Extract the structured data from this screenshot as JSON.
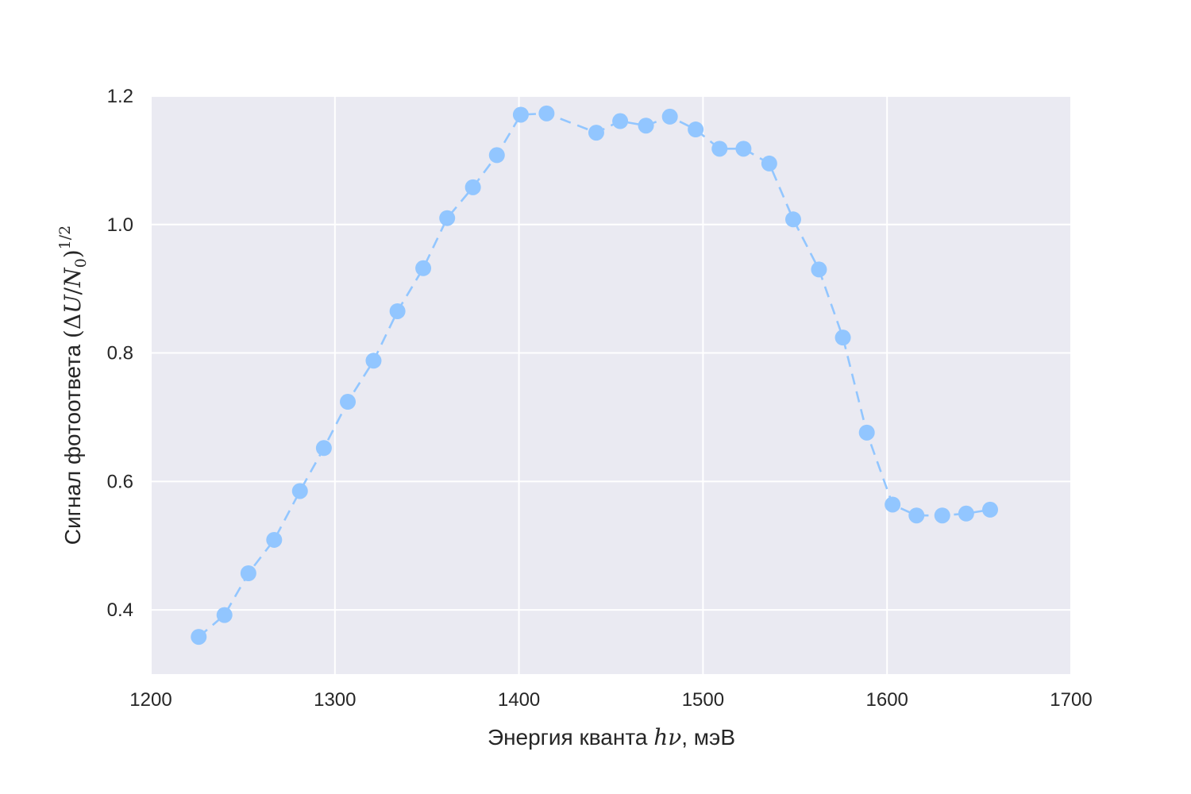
{
  "chart_data": {
    "type": "line",
    "title": "",
    "xlabel": "Энергия кванта hν, мэВ",
    "ylabel": "Сигнал фотоответа (ΔU/N₀)^(1/2)",
    "xlim": [
      1200,
      1700
    ],
    "ylim": [
      0.3,
      1.2
    ],
    "xticks": [
      1200,
      1300,
      1400,
      1500,
      1600,
      1700
    ],
    "yticks": [
      0.4,
      0.6,
      0.8,
      1.0,
      1.2
    ],
    "xtick_labels": [
      "1200",
      "1300",
      "1400",
      "1500",
      "1600",
      "1700"
    ],
    "ytick_labels": [
      "0.4",
      "0.6",
      "0.8",
      "1.0",
      "1.2"
    ],
    "grid": true,
    "line_style": "dashed",
    "marker": "circle",
    "series_color": "#92c6ff",
    "background_color": "#eaeaf2",
    "grid_color": "#ffffff",
    "series": [
      {
        "x": [
          1226,
          1240,
          1253,
          1267,
          1281,
          1294,
          1307,
          1321,
          1334,
          1348,
          1361,
          1375,
          1388,
          1401,
          1415,
          1442,
          1455,
          1469,
          1482,
          1496,
          1509,
          1522,
          1536,
          1549,
          1563,
          1576,
          1589,
          1603,
          1616,
          1630,
          1643,
          1656
        ],
        "y": [
          0.358,
          0.392,
          0.457,
          0.509,
          0.585,
          0.652,
          0.724,
          0.788,
          0.865,
          0.932,
          1.01,
          1.058,
          1.108,
          1.171,
          1.173,
          1.143,
          1.161,
          1.154,
          1.168,
          1.148,
          1.118,
          1.118,
          1.095,
          1.008,
          0.93,
          0.824,
          0.676,
          0.564,
          0.547,
          0.547,
          0.55,
          0.556
        ]
      }
    ]
  },
  "labels": {
    "xlabel_text": "Энергия кванта ",
    "xlabel_math": "hν",
    "xlabel_unit": ", мэВ",
    "ylabel_text": "Сигнал фотоответа ",
    "ylabel_math_open": "(Δ",
    "ylabel_math_U": "U",
    "ylabel_math_slash": "/",
    "ylabel_math_N": "N",
    "ylabel_math_sub": "0",
    "ylabel_math_close": ")",
    "ylabel_math_sup": "1/2"
  }
}
